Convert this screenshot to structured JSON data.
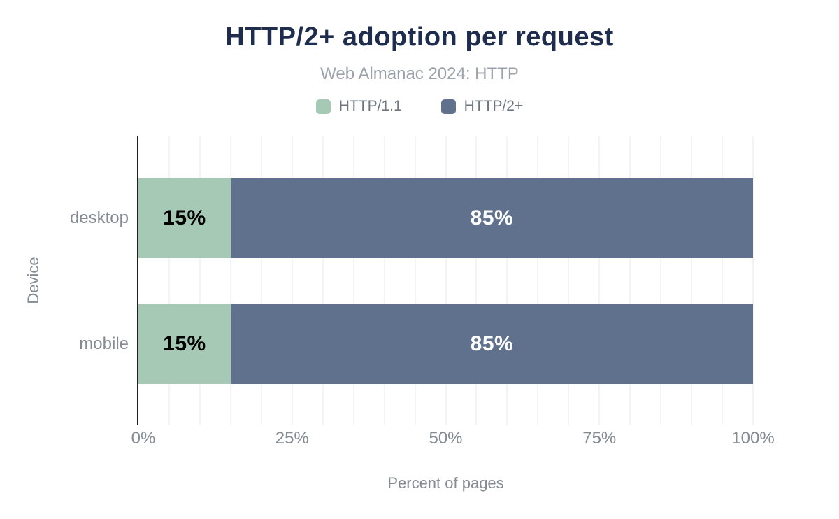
{
  "chart_data": {
    "type": "bar",
    "orientation": "horizontal",
    "stacked": true,
    "title": "HTTP/2+ adoption per request",
    "subtitle": "Web Almanac 2024: HTTP",
    "categories": [
      "desktop",
      "mobile"
    ],
    "series": [
      {
        "name": "HTTP/1.1",
        "values": [
          15,
          15
        ],
        "color": "#a5c9b4",
        "label_color": "#000000"
      },
      {
        "name": "HTTP/2+",
        "values": [
          85,
          85
        ],
        "color": "#5f718d",
        "label_color": "#ffffff"
      }
    ],
    "value_labels": [
      [
        "15%",
        "85%"
      ],
      [
        "15%",
        "85%"
      ]
    ],
    "xlabel": "Percent of pages",
    "ylabel": "Device",
    "xlim": [
      0,
      100
    ],
    "x_ticks": [
      {
        "pos": 0,
        "label": "0%"
      },
      {
        "pos": 25,
        "label": "25%"
      },
      {
        "pos": 50,
        "label": "50%"
      },
      {
        "pos": 75,
        "label": "75%"
      },
      {
        "pos": 100,
        "label": "100%"
      }
    ],
    "gridline_step": 5,
    "grid": true,
    "legend_position": "top"
  },
  "palette": {
    "title_text": "#1e2c4e",
    "muted_text": "#848b93",
    "subtitle_text": "#9aa1a9",
    "gridline": "#f4f4f4",
    "axis_line": "#1f1f1f",
    "http11_green": "#a5c9b4",
    "http2_blue": "#5f718d"
  }
}
